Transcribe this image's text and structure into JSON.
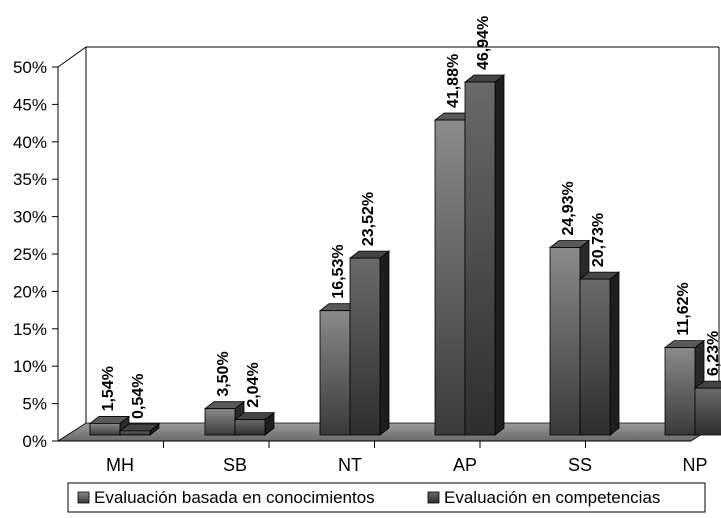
{
  "chart_data": {
    "type": "bar",
    "title": "",
    "xlabel": "",
    "ylabel": "",
    "ylim": [
      0,
      50
    ],
    "yticks": [
      "0%",
      "5%",
      "10%",
      "15%",
      "20%",
      "25%",
      "30%",
      "35%",
      "40%",
      "45%",
      "50%"
    ],
    "categories": [
      "MH",
      "SB",
      "NT",
      "AP",
      "SS",
      "NP"
    ],
    "series": [
      {
        "name": "Evaluación basada en conocimientos",
        "values": [
          1.54,
          3.5,
          16.53,
          41.88,
          24.93,
          11.62
        ],
        "labels": [
          "1,54%",
          "3,50%",
          "16,53%",
          "41,88%",
          "24,93%",
          "11,62%"
        ],
        "color": "#6e6e6e"
      },
      {
        "name": "Evaluación en competencias",
        "values": [
          0.54,
          2.04,
          23.52,
          46.94,
          20.73,
          6.23
        ],
        "labels": [
          "0,54%",
          "2,04%",
          "23,52%",
          "46,94%",
          "20,73%",
          "6,23%"
        ],
        "color": "#4a4a4a"
      }
    ],
    "grid": false,
    "legend": "bottom"
  }
}
